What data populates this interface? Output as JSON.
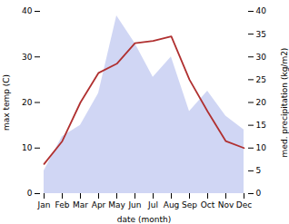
{
  "chart_data": {
    "type": "line",
    "categories": [
      "Jan",
      "Feb",
      "Mar",
      "Apr",
      "May",
      "Jun",
      "Jul",
      "Aug",
      "Sep",
      "Oct",
      "Nov",
      "Dec"
    ],
    "xlabel": "date (month)",
    "ylabel": "max temp (C)",
    "y2label": "med. precipitation (kg/m2)",
    "ylim": [
      0,
      40
    ],
    "yticks": [
      0,
      10,
      20,
      30,
      40
    ],
    "y2lim": [
      0,
      40
    ],
    "y2ticks": [
      0,
      5,
      10,
      15,
      20,
      25,
      30,
      35,
      40
    ],
    "series": [
      {
        "type": "area",
        "color": "#bcc5ef",
        "axis": "y2",
        "values": [
          5.0,
          12.5,
          15.0,
          22.0,
          39.0,
          33.0,
          25.5,
          30.0,
          18.0,
          22.5,
          17.0,
          14.0
        ]
      },
      {
        "type": "line",
        "color": "#b03030",
        "values": [
          6.5,
          11.5,
          20.0,
          26.5,
          28.5,
          33.0,
          33.5,
          34.5,
          25.0,
          18.0,
          11.5,
          10.0
        ]
      }
    ]
  }
}
